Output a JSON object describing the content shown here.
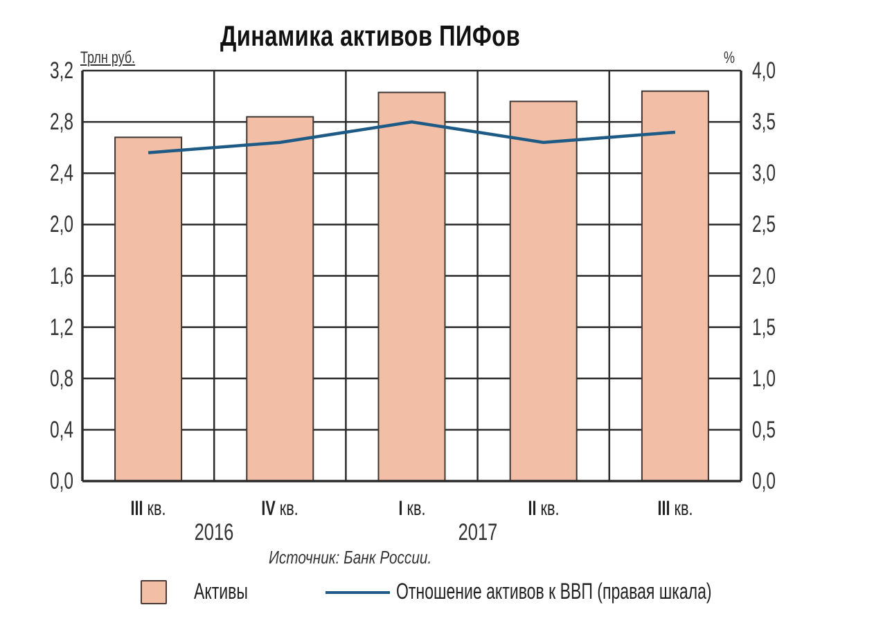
{
  "chart_data": {
    "type": "bar",
    "title": "Динамика активов ПИФов",
    "categories": [
      "III кв. 2016",
      "IV кв. 2016",
      "I кв. 2017",
      "II кв. 2017",
      "III кв. 2017"
    ],
    "category_labels": [
      {
        "roman": "III",
        "suffix": "кв."
      },
      {
        "roman": "IV",
        "suffix": "кв."
      },
      {
        "roman": "I",
        "suffix": "кв."
      },
      {
        "roman": "II",
        "suffix": "кв."
      },
      {
        "roman": "III",
        "suffix": "кв."
      }
    ],
    "year_labels": [
      "2016",
      "2017"
    ],
    "series": [
      {
        "name": "Активы",
        "type": "bar",
        "axis": "left",
        "color": "#f2bfa6",
        "values": [
          2.68,
          2.84,
          3.03,
          2.96,
          3.04
        ]
      },
      {
        "name": "Отношение активов к ВВП (правая шкала)",
        "type": "line",
        "axis": "right",
        "color": "#1d5a85",
        "values": [
          3.2,
          3.3,
          3.5,
          3.3,
          3.4
        ]
      }
    ],
    "ylabel": "Трлн руб.",
    "ylabel_right": "%",
    "ylim": [
      0,
      3.2
    ],
    "ylim_right": [
      0,
      4.0
    ],
    "yticks": [
      "0,0",
      "0,4",
      "0,8",
      "1,2",
      "1,6",
      "2,0",
      "2,4",
      "2,8",
      "3,2"
    ],
    "yticks_right": [
      "0,0",
      "0,5",
      "1,0",
      "1,5",
      "2,0",
      "2,5",
      "3,0",
      "3,5",
      "4,0"
    ],
    "grid": true,
    "legend_position": "bottom",
    "source": "Источник: Банк России."
  },
  "header": {
    "title": "Динамика активов ПИФов",
    "unit_left": "Трлн руб.",
    "unit_right": "%"
  },
  "footer": {
    "source": "Источник: Банк России.",
    "legend": [
      {
        "label": "Активы",
        "kind": "bar"
      },
      {
        "label": "Отношение активов к ВВП (правая шкала)",
        "kind": "line"
      }
    ]
  },
  "colors": {
    "bar_fill": "#f2bfa6",
    "bar_stroke": "#3d3532",
    "line": "#1d5a85",
    "grid": "#2a2a2a"
  }
}
